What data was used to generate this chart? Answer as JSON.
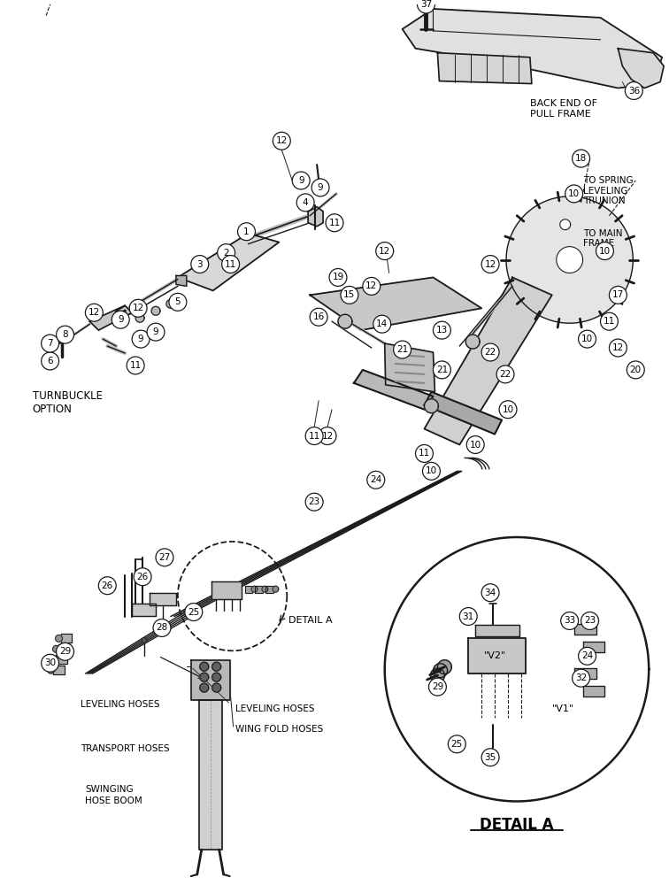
{
  "bg_color": "#ffffff",
  "line_color": "#1a1a1a",
  "labels": {
    "back_end": "BACK END OF\nPULL FRAME",
    "to_spring": "TO SPRING\nLEVELING\nTRUNION",
    "to_main": "TO MAIN\nFRAME",
    "turnbuckle": "TURNBUCKLE\nOPTION",
    "detail_a_callout": "DETAIL A",
    "detail_a_title": "DETAIL A",
    "leveling_hoses": "LEVELING HOSES",
    "wing_fold_hoses": "WING FOLD HOSES",
    "transport_hoses": "TRANSPORT HOSES",
    "swinging_hose_boom": "SWINGING\nHOSE BOOM"
  },
  "figsize": [
    7.56,
    10.0
  ],
  "dpi": 100
}
